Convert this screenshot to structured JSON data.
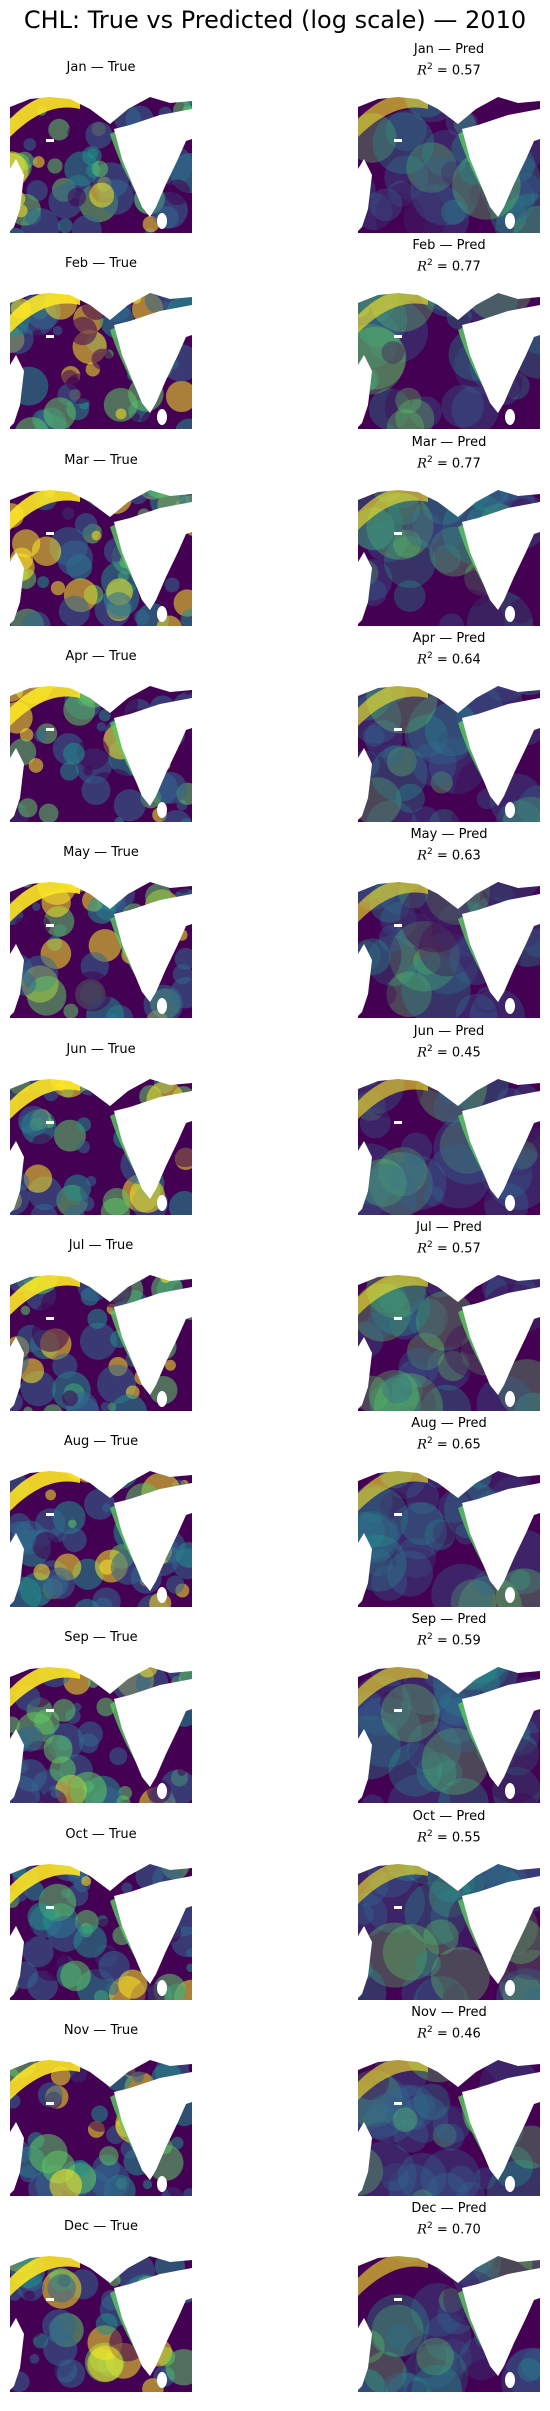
{
  "figure": {
    "title": "CHL: True vs Predicted (log scale) — 2010"
  },
  "chart_data": {
    "type": "heatmap",
    "title": "CHL: True vs Predicted (log scale) — 2010",
    "colormap": "viridis",
    "scale": "log",
    "panels": [
      {
        "month": "Jan",
        "true_title": "Jan — True",
        "pred_title": "Jan — Pred",
        "r2_label": "R",
        "r2": 0.57,
        "r2_text": " = 0.57"
      },
      {
        "month": "Feb",
        "true_title": "Feb — True",
        "pred_title": "Feb — Pred",
        "r2_label": "R",
        "r2": 0.77,
        "r2_text": " = 0.77"
      },
      {
        "month": "Mar",
        "true_title": "Mar — True",
        "pred_title": "Mar — Pred",
        "r2_label": "R",
        "r2": 0.77,
        "r2_text": " = 0.77"
      },
      {
        "month": "Apr",
        "true_title": "Apr — True",
        "pred_title": "Apr — Pred",
        "r2_label": "R",
        "r2": 0.64,
        "r2_text": " = 0.64"
      },
      {
        "month": "May",
        "true_title": "May — True",
        "pred_title": "May — Pred",
        "r2_label": "R",
        "r2": 0.63,
        "r2_text": " = 0.63"
      },
      {
        "month": "Jun",
        "true_title": "Jun — True",
        "pred_title": "Jun — Pred",
        "r2_label": "R",
        "r2": 0.45,
        "r2_text": " = 0.45"
      },
      {
        "month": "Jul",
        "true_title": "Jul — True",
        "pred_title": "Jul — Pred",
        "r2_label": "R",
        "r2": 0.57,
        "r2_text": " = 0.57"
      },
      {
        "month": "Aug",
        "true_title": "Aug — True",
        "pred_title": "Aug — Pred",
        "r2_label": "R",
        "r2": 0.65,
        "r2_text": " = 0.65"
      },
      {
        "month": "Sep",
        "true_title": "Sep — True",
        "pred_title": "Sep — Pred",
        "r2_label": "R",
        "r2": 0.59,
        "r2_text": " = 0.59"
      },
      {
        "month": "Oct",
        "true_title": "Oct — True",
        "pred_title": "Oct — Pred",
        "r2_label": "R",
        "r2": 0.55,
        "r2_text": " = 0.55"
      },
      {
        "month": "Nov",
        "true_title": "Nov — True",
        "pred_title": "Nov — Pred",
        "r2_label": "R",
        "r2": 0.46,
        "r2_text": " = 0.46"
      },
      {
        "month": "Dec",
        "true_title": "Dec — True",
        "pred_title": "Dec — Pred",
        "r2_label": "R",
        "r2": 0.7,
        "r2_text": " = 0.70"
      }
    ],
    "colors": {
      "low": "#440154",
      "mid_low": "#31688e",
      "mid": "#21918c",
      "mid_high": "#5ec962",
      "high": "#fde725",
      "land": "#ffffff"
    }
  }
}
